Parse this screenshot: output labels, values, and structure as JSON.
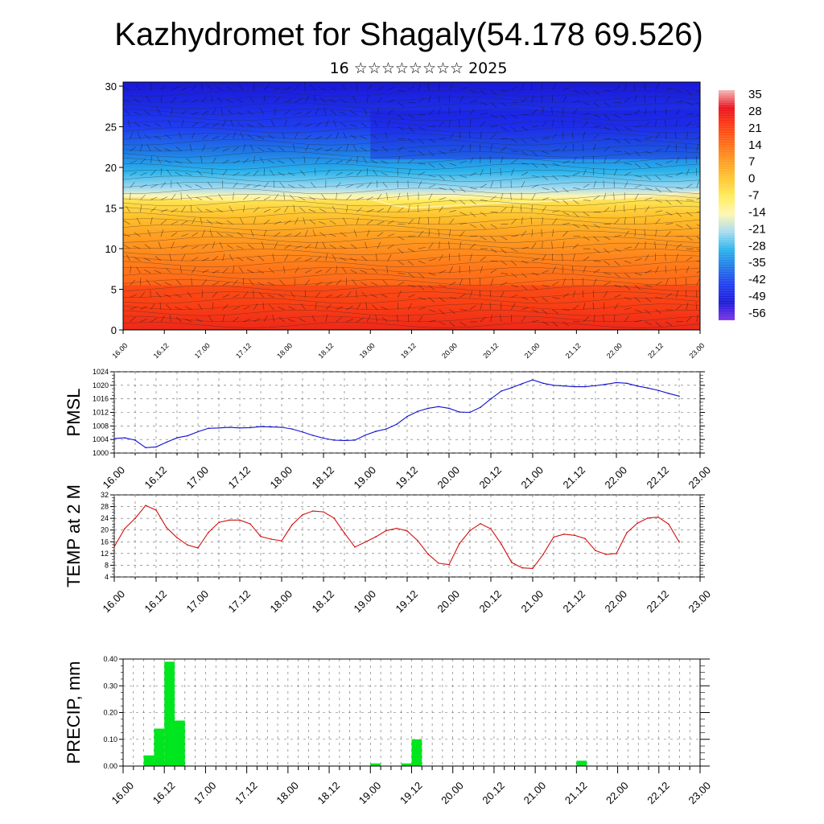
{
  "title": "Kazhydromet for Shagaly(54.178 69.526)",
  "subtitle": "16 ☆☆☆☆☆☆☆☆ 2025",
  "time_labels": [
    "16.00",
    "16.12",
    "17.00",
    "17.12",
    "18.00",
    "18.12",
    "19.00",
    "19.12",
    "20.00",
    "20.12",
    "21.00",
    "21.12",
    "22.00",
    "22.12",
    "23.00"
  ],
  "chart_data": [
    {
      "type": "heatmap",
      "name": "cross-section",
      "y_ticks": [
        "0",
        "5",
        "10",
        "15",
        "20",
        "25",
        "30"
      ],
      "ylim": [
        0,
        30.5
      ],
      "colorbar": {
        "labels": [
          "35",
          "28",
          "21",
          "14",
          "7",
          "0",
          "-7",
          "-14",
          "-21",
          "-28",
          "-35",
          "-42",
          "-49",
          "-56"
        ],
        "colors": [
          "#f4b8b8",
          "#e8101a",
          "#ff3a10",
          "#ff6a15",
          "#ff9a20",
          "#ffc62e",
          "#ffec5a",
          "#fff6b0",
          "#a8dcf0",
          "#2ab4ec",
          "#1f78e6",
          "#1f3cf0",
          "#1a18d8",
          "#7a30e8"
        ]
      },
      "freezing_level": [
        {
          "t": 0,
          "v": 16.5
        },
        {
          "t": 12,
          "v": 16.3
        },
        {
          "t": 24,
          "v": 16.0
        },
        {
          "t": 36,
          "v": 16.0
        },
        {
          "t": 48,
          "v": 16.2
        },
        {
          "t": 60,
          "v": 16.3
        },
        {
          "t": 72,
          "v": 16.1
        },
        {
          "t": 78,
          "v": 15.4
        },
        {
          "t": 84,
          "v": 15.0
        },
        {
          "t": 96,
          "v": 15.3
        },
        {
          "t": 108,
          "v": 15.6
        },
        {
          "t": 120,
          "v": 15.8
        },
        {
          "t": 132,
          "v": 16.0
        },
        {
          "t": 144,
          "v": 16.2
        },
        {
          "t": 156,
          "v": 16.6
        },
        {
          "t": 168,
          "v": 17.0
        }
      ]
    },
    {
      "type": "line",
      "name": "pmsl",
      "ylabel": "PMSL",
      "ylim": [
        1000,
        1024
      ],
      "y_ticks": [
        "1000",
        "1004",
        "1008",
        "1012",
        "1016",
        "1020",
        "1024"
      ],
      "color": "#1010d0",
      "x_hours": [
        0,
        3,
        6,
        9,
        12,
        15,
        18,
        21,
        24,
        27,
        30,
        33,
        36,
        39,
        42,
        45,
        48,
        51,
        54,
        57,
        60,
        63,
        66,
        69,
        72,
        75,
        78,
        81,
        84,
        87,
        90,
        93,
        96,
        99,
        102,
        105,
        108,
        111,
        114,
        117,
        120,
        123,
        126,
        129,
        132,
        135,
        138,
        141,
        144,
        147,
        150,
        153,
        156,
        159,
        162
      ],
      "values": [
        1004.3,
        1004.5,
        1003.8,
        1001.6,
        1001.8,
        1003.2,
        1004.5,
        1005.1,
        1006.3,
        1007.3,
        1007.4,
        1007.6,
        1007.4,
        1007.5,
        1007.8,
        1007.7,
        1007.6,
        1007.1,
        1006.2,
        1005.2,
        1004.4,
        1003.8,
        1003.7,
        1003.8,
        1005.3,
        1006.4,
        1007.1,
        1008.5,
        1010.8,
        1012.3,
        1013.2,
        1013.7,
        1013.2,
        1012.1,
        1012.0,
        1013.5,
        1016.0,
        1018.3,
        1019.3,
        1020.5,
        1021.6,
        1020.6,
        1020.0,
        1019.8,
        1019.6,
        1019.6,
        1019.9,
        1020.3,
        1020.8,
        1020.6,
        1019.8,
        1019.2,
        1018.5,
        1017.6,
        1016.8
      ]
    },
    {
      "type": "line",
      "name": "temp2m",
      "ylabel": "TEMP at 2 M",
      "ylim": [
        4,
        32
      ],
      "y_ticks": [
        "4",
        "8",
        "12",
        "16",
        "20",
        "24",
        "28",
        "32"
      ],
      "color": "#d01010",
      "x_hours": [
        0,
        3,
        6,
        9,
        12,
        15,
        18,
        21,
        24,
        27,
        30,
        33,
        36,
        39,
        42,
        45,
        48,
        51,
        54,
        57,
        60,
        63,
        66,
        69,
        72,
        75,
        78,
        81,
        84,
        87,
        90,
        93,
        96,
        99,
        102,
        105,
        108,
        111,
        114,
        117,
        120,
        123,
        126,
        129,
        132,
        135,
        138,
        141,
        144,
        147,
        150,
        153,
        156,
        159,
        162
      ],
      "values": [
        14.3,
        20.5,
        24.0,
        28.4,
        26.8,
        20.8,
        17.4,
        14.9,
        13.9,
        19.2,
        22.6,
        23.4,
        23.4,
        22.1,
        17.8,
        16.9,
        16.3,
        21.8,
        25.2,
        26.5,
        26.2,
        24.1,
        19.0,
        14.2,
        15.9,
        17.7,
        19.8,
        20.6,
        19.7,
        16.4,
        11.8,
        8.7,
        8.2,
        15.4,
        19.8,
        22.2,
        20.4,
        15.2,
        8.9,
        7.1,
        6.9,
        11.7,
        17.6,
        18.6,
        18.2,
        17.1,
        13.0,
        11.7,
        12.0,
        19.1,
        22.3,
        24.1,
        24.4,
        22.0,
        15.9
      ]
    },
    {
      "type": "bar",
      "name": "precip",
      "ylabel": "PRECIP, mm",
      "ylim": [
        0,
        0.4
      ],
      "y_ticks": [
        "0.00",
        "0.10",
        "0.20",
        "0.30",
        "0.40"
      ],
      "color": "#00e61e",
      "x_hours": [
        6,
        9,
        12,
        15,
        18,
        72,
        81,
        84,
        132
      ],
      "values": [
        0.04,
        0.14,
        0.39,
        0.17,
        0.0,
        0.01,
        0.01,
        0.1,
        0.02
      ]
    }
  ]
}
